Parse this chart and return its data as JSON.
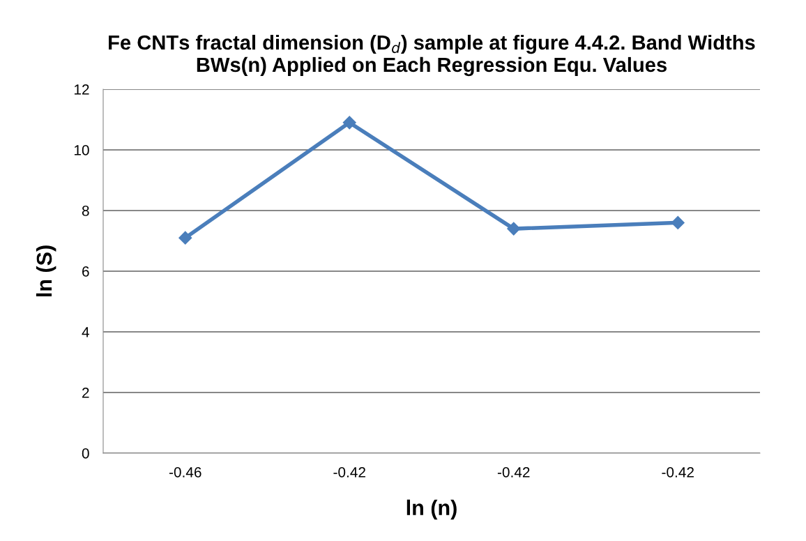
{
  "chart_data": {
    "type": "line",
    "title": "Fe CNTs fractal dimension (D$_{d}$) sample at figure 4.4.2. Band Widths\nBWs(n) Applied on Each Regression Equ. Values",
    "xlabel": "ln (n)",
    "ylabel": "ln (S)",
    "categories": [
      "-0.46",
      "-0.42",
      "-0.42",
      "-0.42"
    ],
    "series": [
      {
        "color": "#4a7ebb",
        "values": [
          7.1,
          10.9,
          7.4,
          7.6
        ]
      }
    ],
    "ylim": [
      0,
      12
    ],
    "yticks": [
      0,
      2,
      4,
      6,
      8,
      10,
      12
    ],
    "grid": "y",
    "marker": "diamond",
    "line_style": "solid"
  }
}
